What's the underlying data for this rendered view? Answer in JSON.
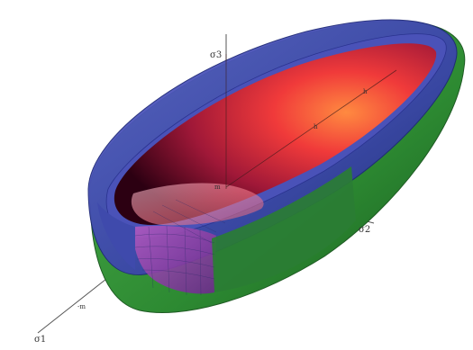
{
  "figure": {
    "axes": {
      "sigma1": "σ1",
      "sigma2": "σ2",
      "sigma3": "σ3"
    },
    "tick_labels": [
      "-m",
      "h",
      "h",
      "m"
    ],
    "colors": {
      "inner_surface_light": "#ff7a40",
      "inner_surface_mid": "#d8203a",
      "inner_surface_dark": "#3a0016",
      "blue_shell": "#3a48b4",
      "green_shell": "#2f8a35",
      "axis_lines": "#555555"
    },
    "icons": [
      "ellipsoid-surface-graphic"
    ]
  }
}
